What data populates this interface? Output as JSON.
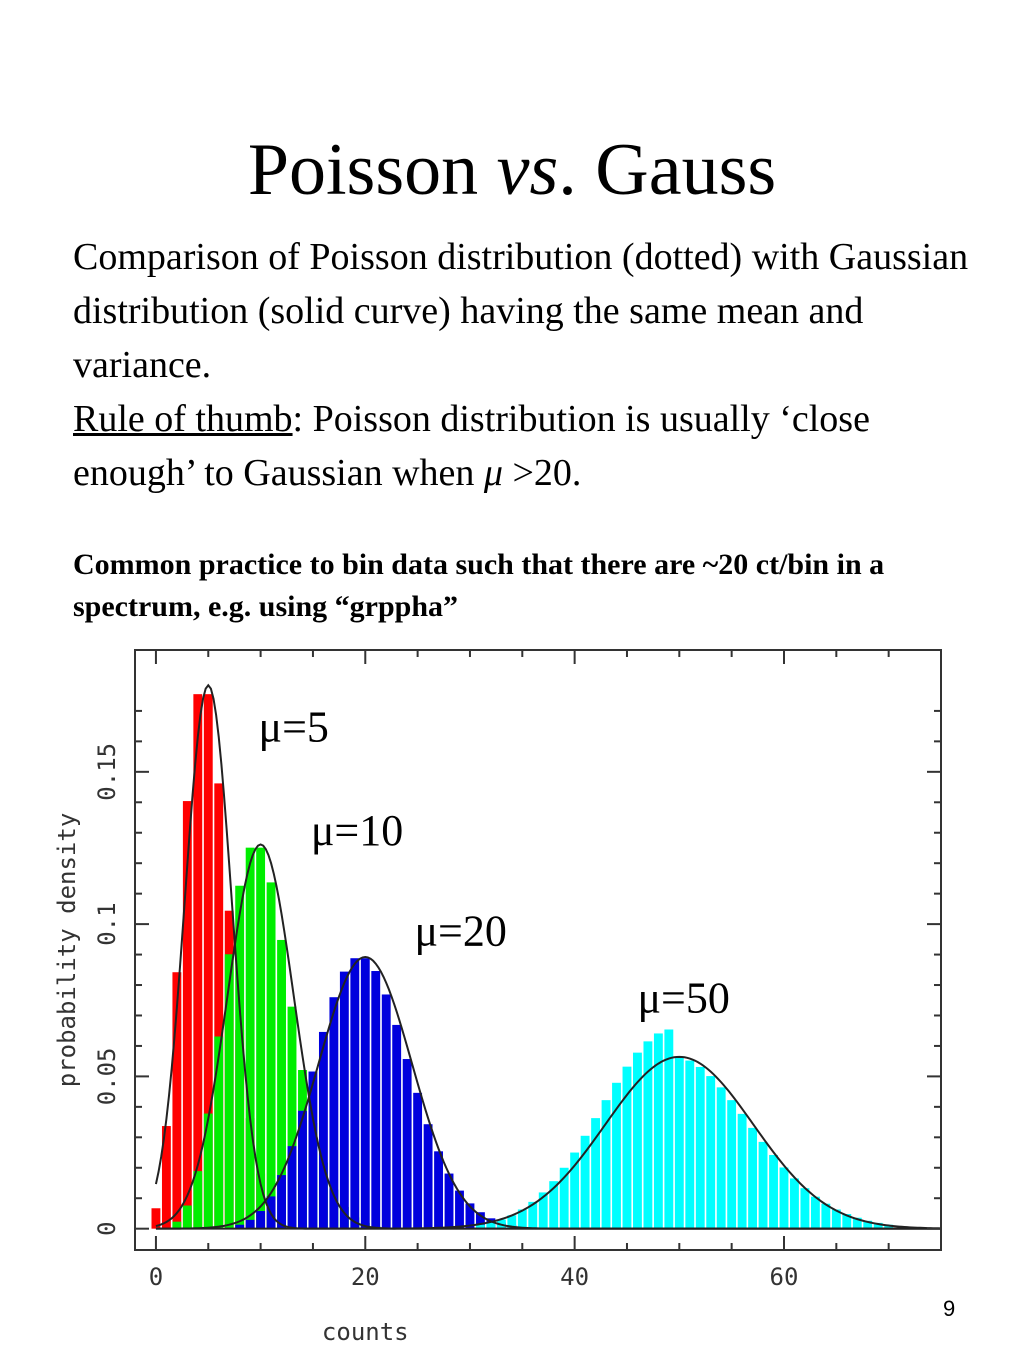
{
  "slide": {
    "title_a": "Poisson ",
    "title_b": "vs",
    "title_c": ". Gauss",
    "para1": "Comparison of Poisson distribution (dotted) with Gaussian distribution (solid curve) having the same mean and variance.",
    "rule_label": "Rule of thumb",
    "rule_text_a": ": Poisson distribution is usually ‘close enough’ to Gaussian when ",
    "rule_mu": "μ",
    "rule_text_b": " >20.",
    "practice": "Common practice to bin data such that there are ~20 ct/bin in a spectrum, e.g. using “grppha”",
    "page_number": "9"
  },
  "chart_data": {
    "type": "bar",
    "xlabel": "counts",
    "ylabel": "probability density",
    "xlim": [
      -2,
      75
    ],
    "ylim": [
      -0.007,
      0.19
    ],
    "xticks": [
      0,
      20,
      40,
      60
    ],
    "yticks": [
      0,
      0.05,
      0.1,
      0.15
    ],
    "ytick_labels": [
      "0",
      "0.05",
      "0.1",
      "0.15"
    ],
    "grid": false,
    "legend": "none",
    "series": [
      {
        "mu": 5,
        "label": "μ=5",
        "color": "#ff0000",
        "x": [
          0,
          1,
          2,
          3,
          4,
          5,
          6,
          7,
          8,
          9,
          10,
          11,
          12,
          13,
          14
        ],
        "values": [
          0.0067,
          0.0337,
          0.0842,
          0.1404,
          0.1755,
          0.1755,
          0.1462,
          0.1044,
          0.0653,
          0.0363,
          0.0181,
          0.0082,
          0.0034,
          0.0013,
          0.0005
        ]
      },
      {
        "mu": 10,
        "label": "μ=10",
        "color": "#00ee00",
        "x": [
          2,
          3,
          4,
          5,
          6,
          7,
          8,
          9,
          10,
          11,
          12,
          13,
          14,
          15,
          16,
          17,
          18,
          19,
          20,
          21,
          22
        ],
        "values": [
          0.0023,
          0.0076,
          0.0189,
          0.0378,
          0.0631,
          0.0901,
          0.1126,
          0.1251,
          0.1251,
          0.1137,
          0.0948,
          0.0729,
          0.0521,
          0.0347,
          0.0217,
          0.0128,
          0.0071,
          0.0037,
          0.0019,
          0.0009,
          0.0004
        ]
      },
      {
        "mu": 20,
        "label": "μ=20",
        "color": "#0000dd",
        "x": [
          8,
          9,
          10,
          11,
          12,
          13,
          14,
          15,
          16,
          17,
          18,
          19,
          20,
          21,
          22,
          23,
          24,
          25,
          26,
          27,
          28,
          29,
          30,
          31,
          32,
          33,
          34
        ],
        "values": [
          0.0013,
          0.0029,
          0.0058,
          0.0106,
          0.0176,
          0.0271,
          0.0387,
          0.0516,
          0.0646,
          0.076,
          0.0844,
          0.0888,
          0.0888,
          0.0846,
          0.0769,
          0.0669,
          0.0557,
          0.0446,
          0.0343,
          0.0254,
          0.0181,
          0.0125,
          0.0083,
          0.0054,
          0.0034,
          0.002,
          0.0012
        ]
      },
      {
        "mu": 50,
        "label": "μ=50",
        "color": "#00ffff",
        "x": [
          31,
          32,
          33,
          34,
          35,
          36,
          37,
          38,
          39,
          40,
          41,
          42,
          43,
          44,
          45,
          46,
          47,
          48,
          49,
          50,
          51,
          52,
          53,
          54,
          55,
          56,
          57,
          58,
          59,
          60,
          61,
          62,
          63,
          64,
          65,
          66,
          67,
          68,
          69,
          70
        ],
        "values": [
          0.0013,
          0.002,
          0.003,
          0.0044,
          0.0063,
          0.0088,
          0.0119,
          0.0156,
          0.02,
          0.025,
          0.0305,
          0.0363,
          0.0422,
          0.0479,
          0.0532,
          0.0578,
          0.0615,
          0.0641,
          0.0654,
          0.0563,
          0.0552,
          0.0531,
          0.0501,
          0.0464,
          0.0422,
          0.0377,
          0.0331,
          0.0285,
          0.0242,
          0.0201,
          0.0165,
          0.0133,
          0.0105,
          0.0082,
          0.0063,
          0.0048,
          0.0036,
          0.0026,
          0.0019,
          0.0013
        ]
      }
    ]
  }
}
